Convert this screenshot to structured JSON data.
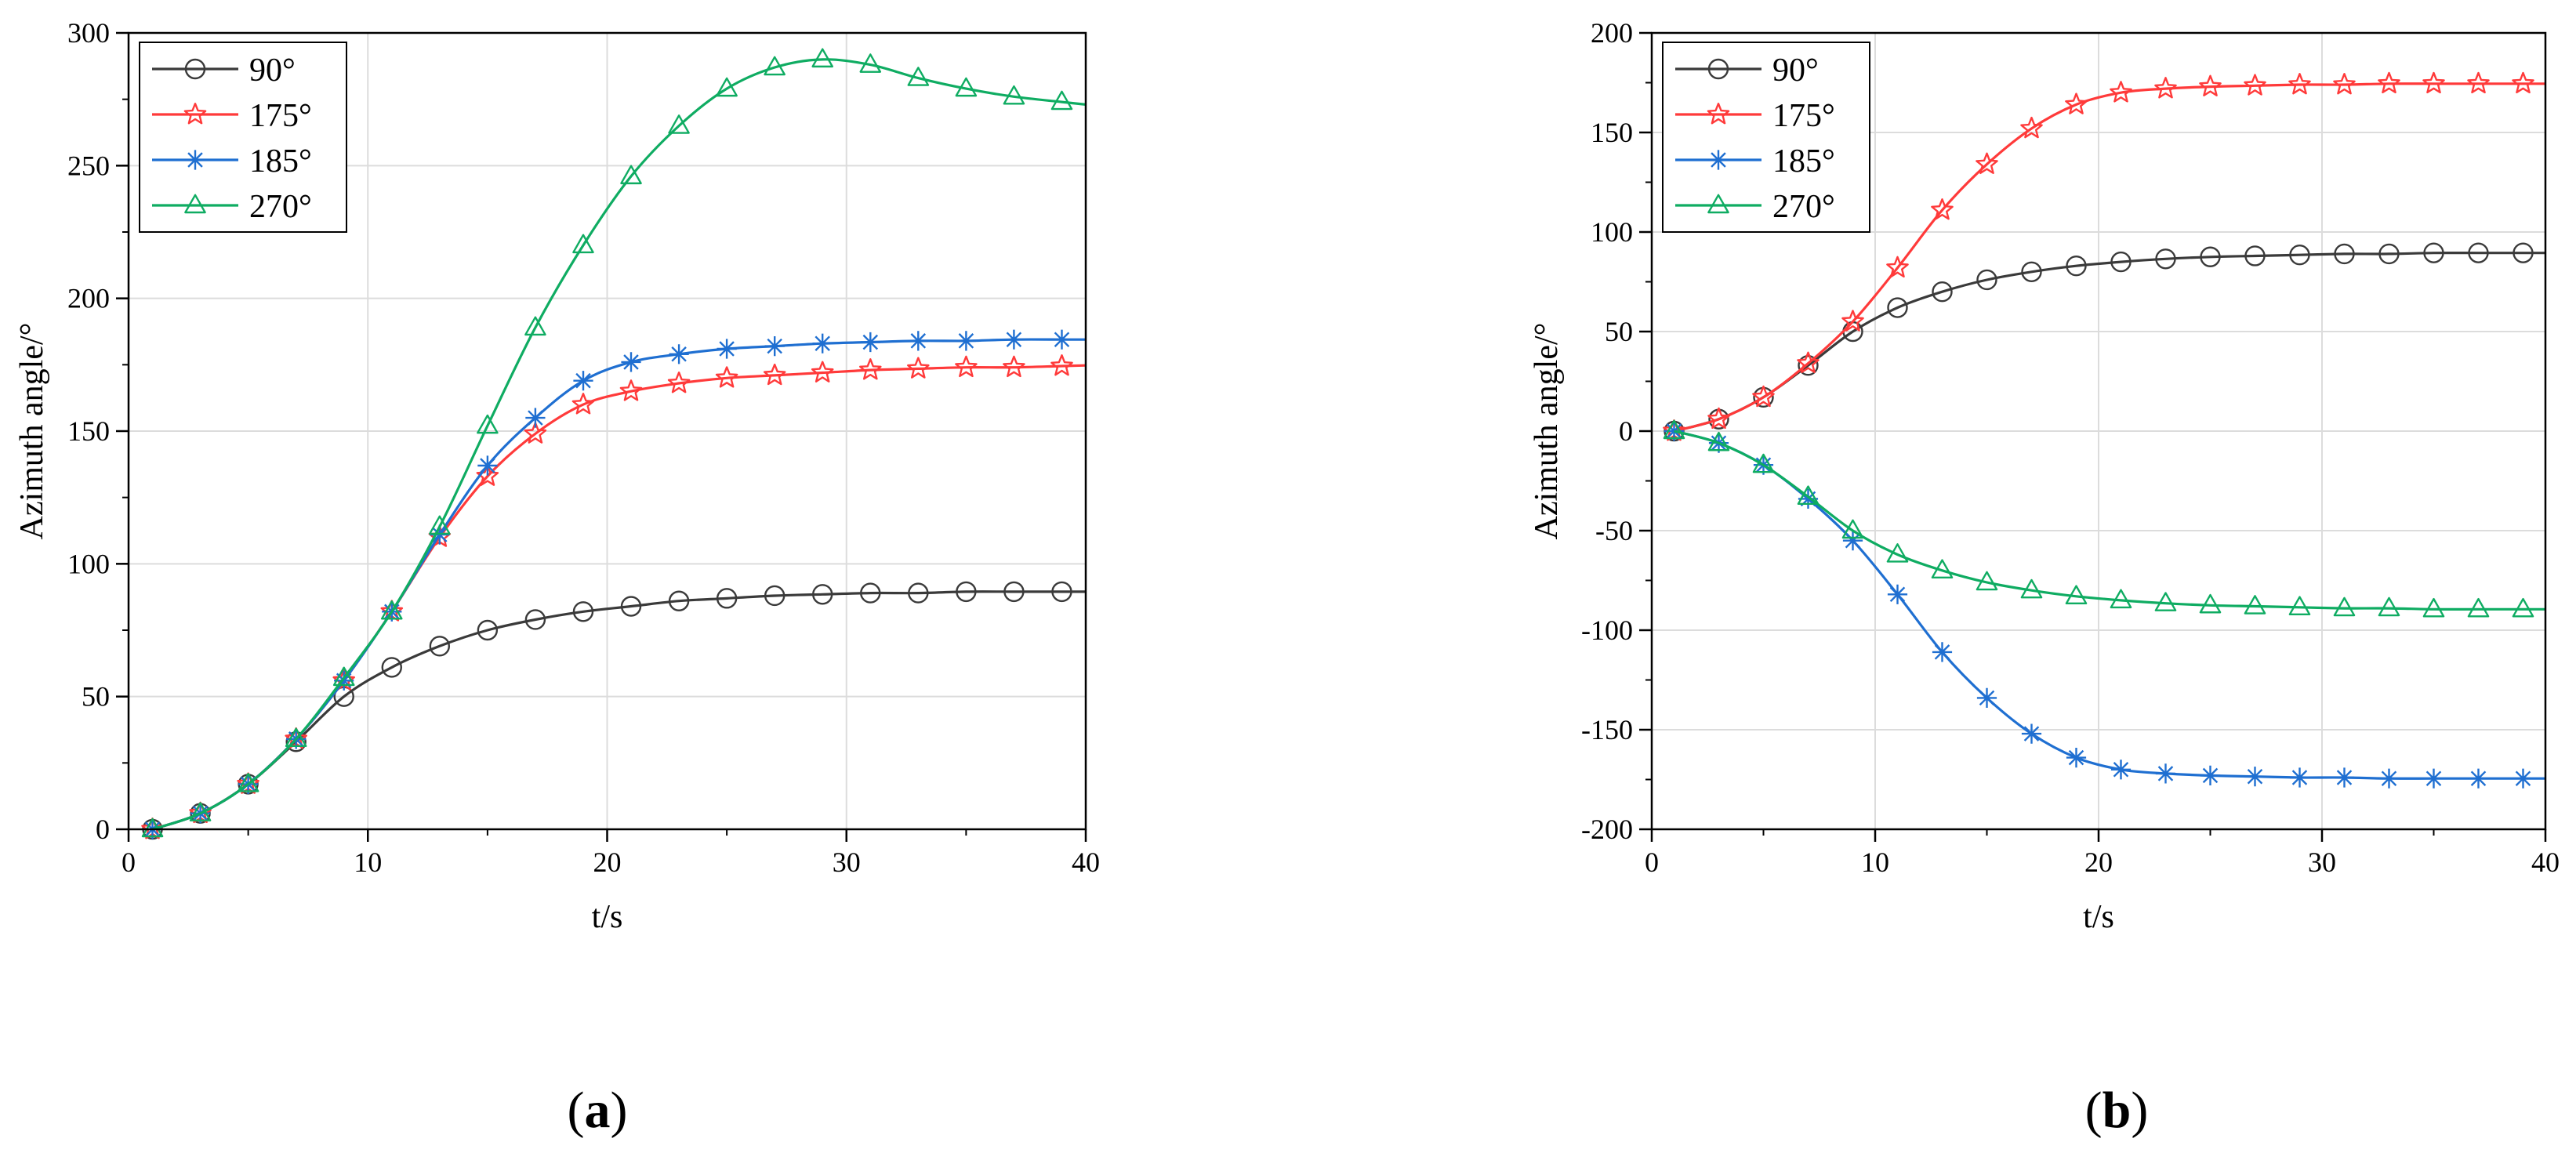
{
  "panels": [
    {
      "id": "a",
      "label_open": "(",
      "label_letter": "a",
      "label_close": ")"
    },
    {
      "id": "b",
      "label_open": "(",
      "label_letter": "b",
      "label_close": ")"
    }
  ],
  "chart_data": [
    {
      "type": "line",
      "panel": "a",
      "title": "",
      "xlabel": "t/s",
      "ylabel": "Azimuth angle/°",
      "xlim": [
        0,
        40
      ],
      "ylim": [
        0,
        300
      ],
      "xticks": [
        0,
        10,
        20,
        30,
        40
      ],
      "yticks": [
        0,
        50,
        100,
        150,
        200,
        250,
        300
      ],
      "grid": true,
      "legend_position": "top-left",
      "x": [
        1,
        3,
        5,
        7,
        9,
        11,
        13,
        15,
        17,
        19,
        21,
        23,
        25,
        27,
        29,
        31,
        33,
        35,
        37,
        39
      ],
      "series": [
        {
          "name": "90°",
          "color": "#3a3a3a",
          "marker": "circle",
          "values": [
            0,
            6,
            17,
            33,
            50,
            61,
            69,
            75,
            79,
            82,
            84,
            86,
            87,
            88,
            88.5,
            89,
            89,
            89.5,
            89.5,
            89.5
          ]
        },
        {
          "name": "175°",
          "color": "#ff3a3a",
          "marker": "star",
          "values": [
            0,
            6,
            17,
            34,
            56,
            82,
            110,
            133,
            149,
            160,
            165,
            168,
            170,
            171,
            172,
            173,
            173.5,
            174,
            174,
            174.5
          ]
        },
        {
          "name": "185°",
          "color": "#1f6fd1",
          "marker": "asterisk",
          "values": [
            0,
            6,
            17,
            34,
            56,
            82,
            111,
            137,
            155,
            169,
            176,
            179,
            181,
            182,
            183,
            183.5,
            184,
            184,
            184.5,
            184.5
          ]
        },
        {
          "name": "270°",
          "color": "#0fac62",
          "marker": "triangle",
          "values": [
            0,
            6,
            17,
            34,
            57,
            82,
            114,
            152,
            189,
            220,
            246,
            265,
            279,
            287,
            290,
            288,
            283,
            279,
            276,
            274
          ]
        }
      ]
    },
    {
      "type": "line",
      "panel": "b",
      "title": "",
      "xlabel": "t/s",
      "ylabel": "Azimuth angle/°",
      "xlim": [
        0,
        40
      ],
      "ylim": [
        -200,
        200
      ],
      "xticks": [
        0,
        10,
        20,
        30,
        40
      ],
      "yticks": [
        -200,
        -150,
        -100,
        -50,
        0,
        50,
        100,
        150,
        200
      ],
      "grid": true,
      "legend_position": "top-left",
      "x": [
        1,
        3,
        5,
        7,
        9,
        11,
        13,
        15,
        17,
        19,
        21,
        23,
        25,
        27,
        29,
        31,
        33,
        35,
        37,
        39
      ],
      "series": [
        {
          "name": "90°",
          "color": "#3a3a3a",
          "marker": "circle",
          "values": [
            0,
            6,
            17,
            33,
            50,
            62,
            70,
            76,
            80,
            83,
            85,
            86.5,
            87.5,
            88,
            88.5,
            89,
            89,
            89.5,
            89.5,
            89.5
          ]
        },
        {
          "name": "175°",
          "color": "#ff3a3a",
          "marker": "star",
          "values": [
            0,
            6,
            17,
            34,
            55,
            82,
            111,
            134,
            152,
            164,
            170,
            172,
            173,
            173.5,
            174,
            174,
            174.5,
            174.5,
            174.5,
            174.5
          ]
        },
        {
          "name": "185°",
          "color": "#1f6fd1",
          "marker": "asterisk",
          "values": [
            0,
            -6,
            -17,
            -34,
            -55,
            -82,
            -111,
            -134,
            -152,
            -164,
            -170,
            -172,
            -173,
            -173.5,
            -174,
            -174,
            -174.5,
            -174.5,
            -174.5,
            -174.5
          ]
        },
        {
          "name": "270°",
          "color": "#0fac62",
          "marker": "triangle",
          "values": [
            0,
            -6,
            -17,
            -33,
            -50,
            -62,
            -70,
            -76,
            -80,
            -83,
            -85,
            -86.5,
            -87.5,
            -88,
            -88.5,
            -89,
            -89,
            -89.5,
            -89.5,
            -89.5
          ]
        }
      ]
    }
  ]
}
